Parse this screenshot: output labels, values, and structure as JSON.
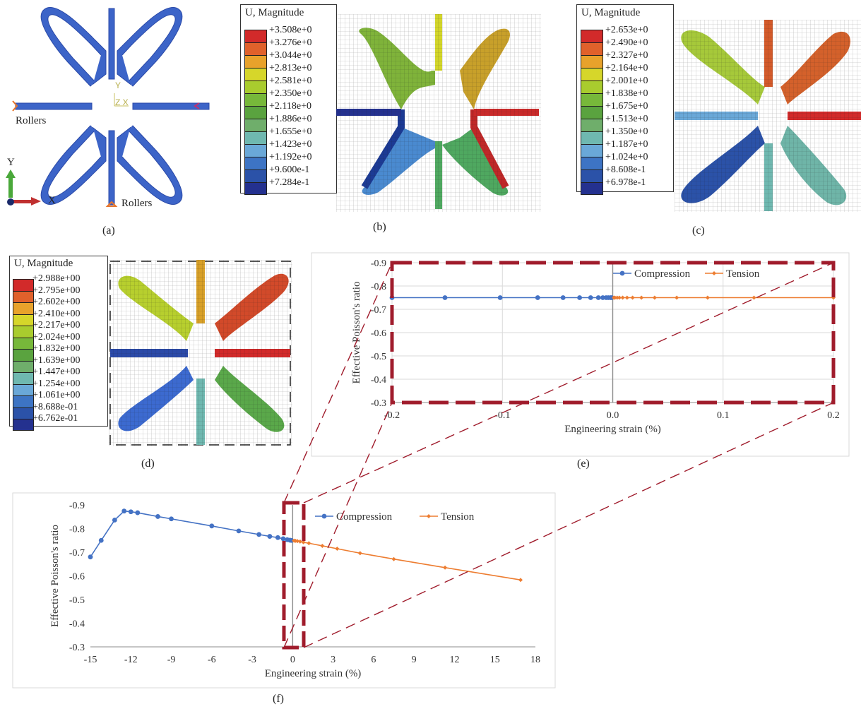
{
  "panels": {
    "a": {
      "label": "(a)",
      "rollers_left": "Rollers",
      "rollers_bottom": "Rollers",
      "axis_y": "Y",
      "axis_x": "X",
      "origin_y": "Y",
      "origin_zx": "Z X"
    },
    "b": {
      "label": "(b)",
      "legend_title": "U, Magnitude",
      "legend_values": [
        "+3.508e+0",
        "+3.276e+0",
        "+3.044e+0",
        "+2.813e+0",
        "+2.581e+0",
        "+2.350e+0",
        "+2.118e+0",
        "+1.886e+0",
        "+1.655e+0",
        "+1.423e+0",
        "+1.192e+0",
        "+9.600e-1",
        "+7.284e-1"
      ]
    },
    "c": {
      "label": "(c)",
      "legend_title": "U, Magnitude",
      "legend_values": [
        "+2.653e+0",
        "+2.490e+0",
        "+2.327e+0",
        "+2.164e+0",
        "+2.001e+0",
        "+1.838e+0",
        "+1.675e+0",
        "+1.513e+0",
        "+1.350e+0",
        "+1.187e+0",
        "+1.024e+0",
        "+8.608e-1",
        "+6.978e-1"
      ]
    },
    "d": {
      "label": "(d)",
      "legend_title": "U, Magnitude",
      "legend_values": [
        "+2.988e+00",
        "+2.795e+00",
        "+2.602e+00",
        "+2.410e+00",
        "+2.217e+00",
        "+2.024e+00",
        "+1.832e+00",
        "+1.639e+00",
        "+1.447e+00",
        "+1.254e+00",
        "+1.061e+00",
        "+8.688e-01",
        "+6.762e-01"
      ]
    },
    "e": {
      "label": "(e)"
    },
    "f": {
      "label": "(f)"
    }
  },
  "legend_colors": [
    "#d22a2a",
    "#e0612b",
    "#e8a22b",
    "#d6d62a",
    "#a9cc2e",
    "#77b83a",
    "#5aa33f",
    "#6fae6b",
    "#6fb8b0",
    "#6aa8d8",
    "#3d74c4",
    "#2b52a8",
    "#24318f"
  ],
  "colors": {
    "compression": "#4472c4",
    "tension": "#ed7d31",
    "zoom_box": "#a01c2c",
    "structure_blue": "#3c64c8"
  },
  "chart_data": [
    {
      "type": "line",
      "panel": "e",
      "xlabel": "Engineering strain (%)",
      "ylabel": "Effective Poisson's ratio",
      "xlim": [
        -0.2,
        0.2
      ],
      "ylim": [
        -0.9,
        -0.3
      ],
      "y_reversed": true,
      "xticks": [
        -0.2,
        -0.1,
        0.0,
        0.1,
        0.2
      ],
      "xtick_labels": [
        "-0.2",
        "-0.1",
        "0.0",
        "0.1",
        "0.2"
      ],
      "yticks": [
        -0.9,
        -0.8,
        -0.7,
        -0.6,
        -0.5,
        -0.4,
        -0.3
      ],
      "ytick_labels": [
        "-0.9",
        "-0.8",
        "-0.7",
        "-0.6",
        "-0.5",
        "-0.4",
        "-0.3"
      ],
      "grid": true,
      "legend": "top-right",
      "series": [
        {
          "name": "Compression",
          "color": "#4472c4",
          "x": [
            -0.2,
            -0.152,
            -0.102,
            -0.068,
            -0.045,
            -0.03,
            -0.02,
            -0.013,
            -0.009,
            -0.006,
            -0.004,
            -0.002,
            -0.001
          ],
          "y": [
            -0.75,
            -0.75,
            -0.75,
            -0.75,
            -0.75,
            -0.75,
            -0.75,
            -0.75,
            -0.75,
            -0.75,
            -0.75,
            -0.75,
            -0.75
          ]
        },
        {
          "name": "Tension",
          "color": "#ed7d31",
          "x": [
            0.001,
            0.002,
            0.004,
            0.006,
            0.009,
            0.013,
            0.018,
            0.026,
            0.038,
            0.058,
            0.086,
            0.128,
            0.2
          ],
          "y": [
            -0.75,
            -0.75,
            -0.75,
            -0.75,
            -0.75,
            -0.75,
            -0.75,
            -0.75,
            -0.75,
            -0.75,
            -0.75,
            -0.75,
            -0.75
          ]
        }
      ]
    },
    {
      "type": "line",
      "panel": "f",
      "xlabel": "Engineering strain (%)",
      "ylabel": "Effective Poisson's ratio",
      "xlim": [
        -15,
        18
      ],
      "ylim": [
        -0.9,
        -0.3
      ],
      "y_reversed": true,
      "xticks": [
        -15,
        -12,
        -9,
        -6,
        -3,
        0,
        3,
        6,
        9,
        12,
        15,
        18
      ],
      "xtick_labels": [
        "-15",
        "-12",
        "-9",
        "-6",
        "-3",
        "0",
        "3",
        "6",
        "9",
        "12",
        "15",
        "18"
      ],
      "yticks": [
        -0.9,
        -0.8,
        -0.7,
        -0.6,
        -0.5,
        -0.4,
        -0.3
      ],
      "ytick_labels": [
        "-0.9",
        "-0.8",
        "-0.7",
        "-0.6",
        "-0.5",
        "-0.4",
        "-0.3"
      ],
      "grid": false,
      "legend": "top-right",
      "series": [
        {
          "name": "Compression",
          "color": "#4472c4",
          "x": [
            -15,
            -14.2,
            -13.2,
            -12.5,
            -12.0,
            -11.5,
            -10.0,
            -9.0,
            -6.0,
            -4.0,
            -2.5,
            -1.7,
            -1.1,
            -0.7,
            -0.4,
            -0.2,
            -0.1
          ],
          "y": [
            -0.68,
            -0.75,
            -0.836,
            -0.874,
            -0.871,
            -0.867,
            -0.851,
            -0.841,
            -0.811,
            -0.79,
            -0.775,
            -0.767,
            -0.762,
            -0.757,
            -0.753,
            -0.751,
            -0.75
          ]
        },
        {
          "name": "Tension",
          "color": "#ed7d31",
          "x": [
            0.1,
            0.2,
            0.35,
            0.55,
            0.8,
            1.2,
            2.2,
            3.3,
            5.0,
            7.5,
            11.3,
            16.9
          ],
          "y": [
            -0.749,
            -0.748,
            -0.747,
            -0.745,
            -0.742,
            -0.738,
            -0.727,
            -0.715,
            -0.696,
            -0.671,
            -0.635,
            -0.583
          ]
        }
      ]
    }
  ]
}
